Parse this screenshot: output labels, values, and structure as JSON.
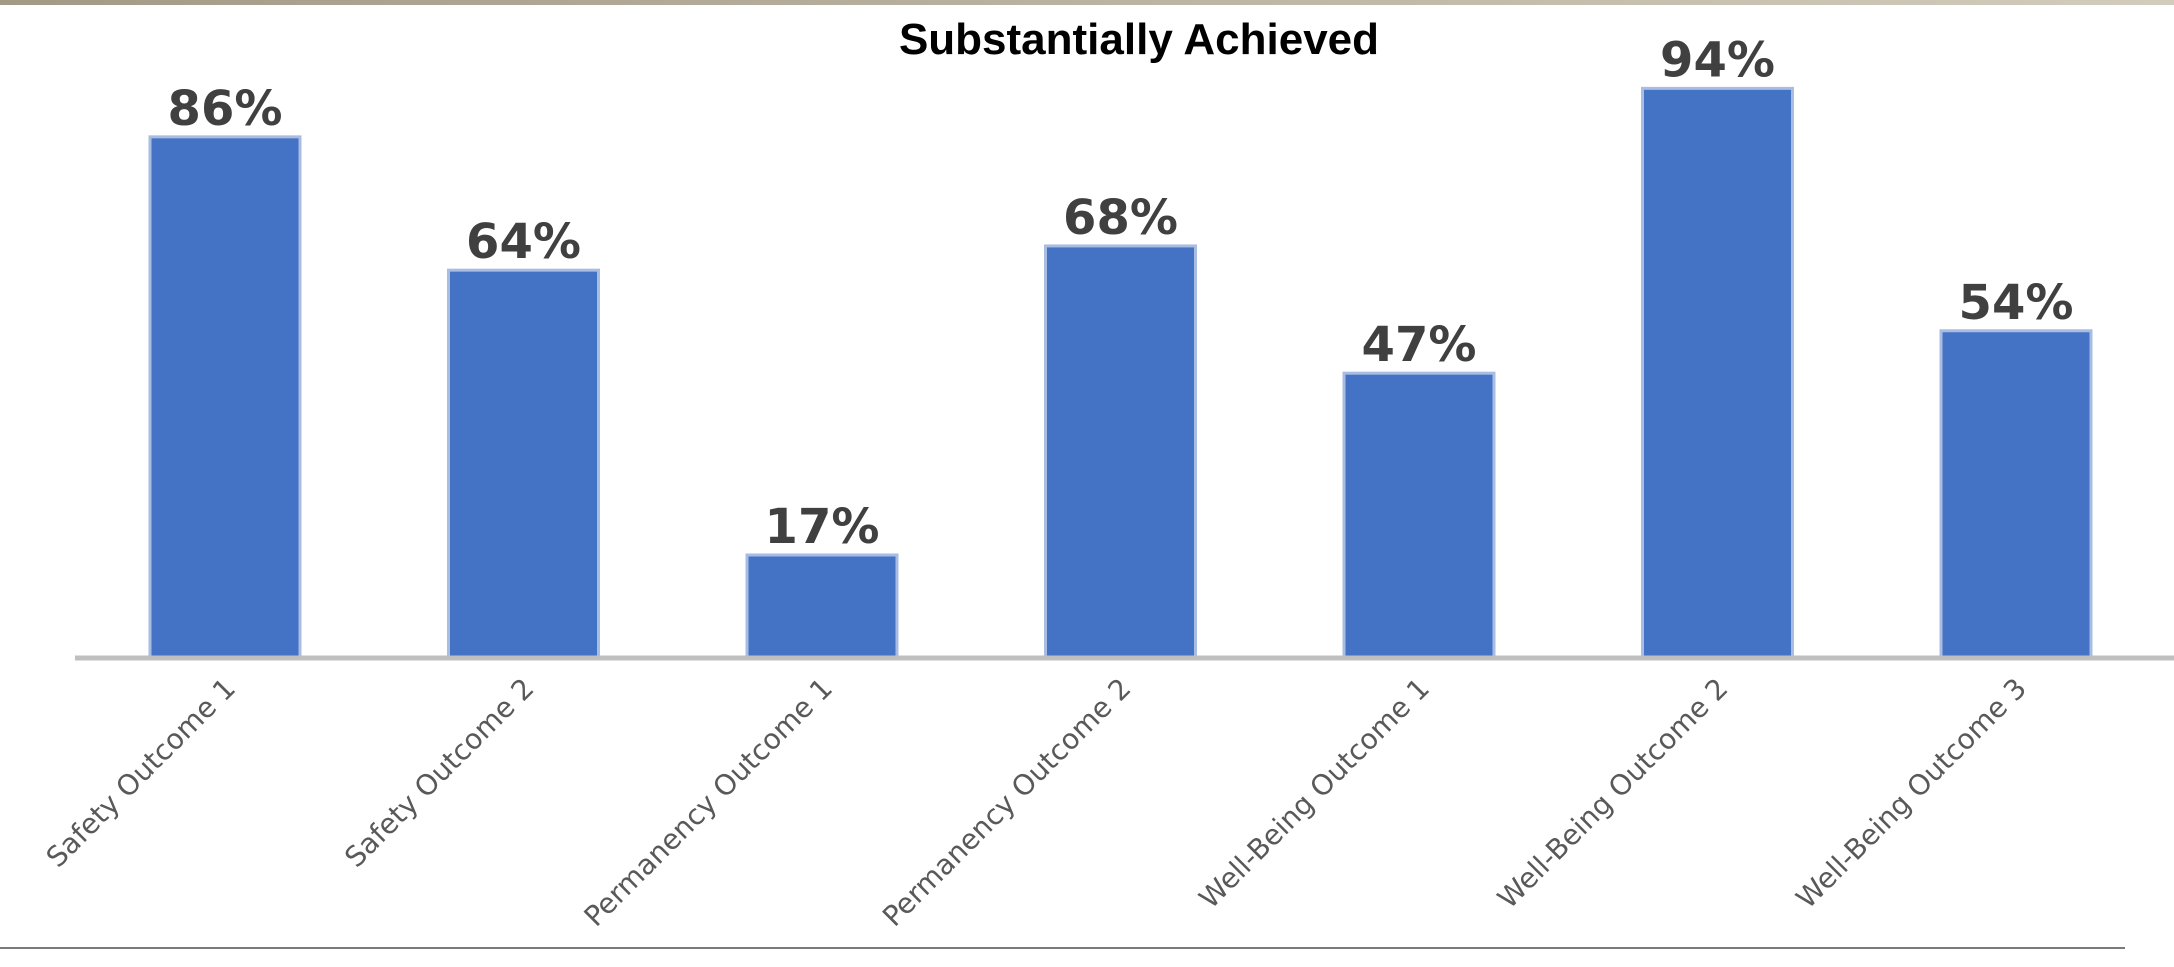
{
  "chart_data": {
    "type": "bar",
    "title": "Substantially Achieved",
    "categories": [
      "Safety Outcome 1",
      "Safety Outcome 2",
      "Permanency Outcome 1",
      "Permanency Outcome 2",
      "Well-Being Outcome 1",
      "Well-Being Outcome 2",
      "Well-Being Outcome 3"
    ],
    "values": [
      86,
      64,
      17,
      68,
      47,
      94,
      54
    ],
    "data_labels": [
      "86%",
      "64%",
      "17%",
      "68%",
      "47%",
      "94%",
      "54%"
    ],
    "ylim": [
      0,
      100
    ],
    "grid": false,
    "legend": "none",
    "colors": {
      "bar": "#4472C4",
      "bar_edge": "#A9BDE3",
      "axis": "#BFBFBF",
      "data_label": "#404040",
      "category_label": "#595959"
    }
  }
}
